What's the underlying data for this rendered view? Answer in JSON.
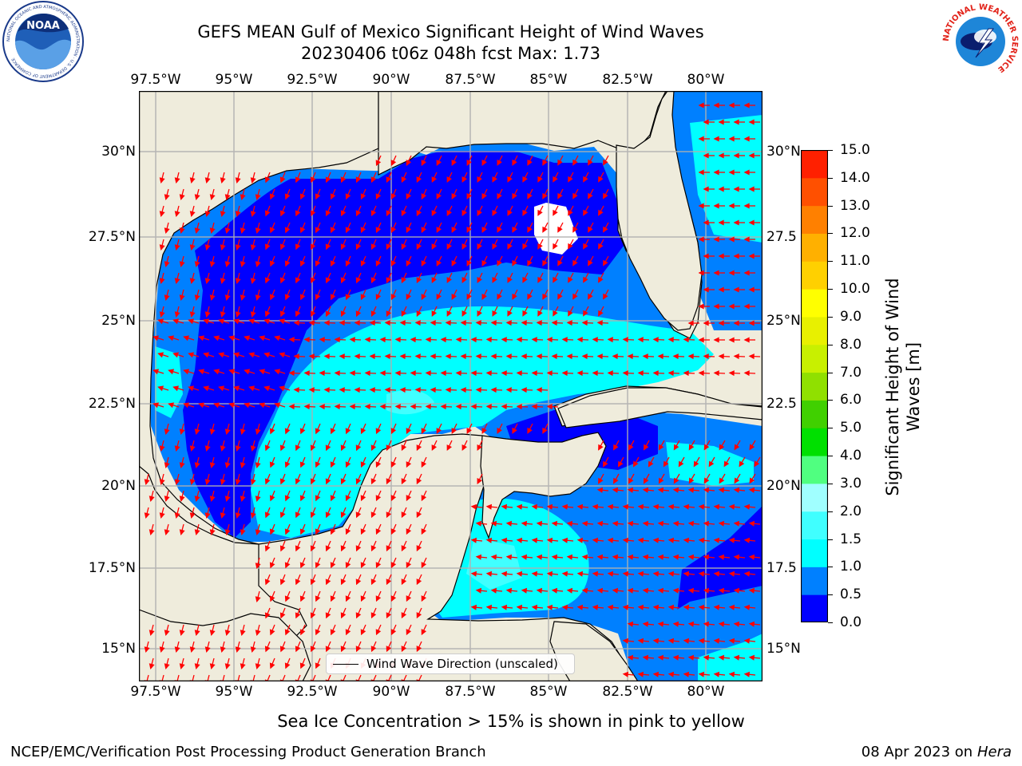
{
  "header": {
    "title_line1": "GEFS MEAN Gulf of Mexico Significant Height of Wind Waves",
    "title_line2": "20230406 t06z 048h fcst   Max: 1.73"
  },
  "logos": {
    "left_logo_text": "NOAA",
    "left_logo_ring": "NATIONAL OCEANIC AND ATMOSPHERIC ADMINISTRATION · U.S. DEPARTMENT OF COMMERCE",
    "right_logo_ring": "NATIONAL WEATHER SERVICE"
  },
  "map": {
    "lon_ticks": [
      "97.5°W",
      "95°W",
      "92.5°W",
      "90°W",
      "87.5°W",
      "85°W",
      "82.5°W",
      "80°W"
    ],
    "lat_ticks_left": [
      "30°N",
      "27.5°N",
      "25°N",
      "22.5°N",
      "20°N",
      "17.5°N",
      "15°N"
    ],
    "lat_ticks_right": [
      "30°N",
      "27.5",
      "25°N",
      "22.5",
      "20°N",
      "17.5",
      "15°N"
    ],
    "land_color": "#efecdc",
    "arrow_color": "#ff0000",
    "legend_label": "Wind Wave Direction (unscaled)"
  },
  "colorbar": {
    "label_line1": "Significant Height of Wind",
    "label_line2": "Waves [m]",
    "ticks": [
      "0.0",
      "0.5",
      "1.0",
      "1.5",
      "2.0",
      "3.0",
      "4.0",
      "5.0",
      "6.0",
      "7.0",
      "8.0",
      "9.0",
      "10.0",
      "11.0",
      "12.0",
      "13.0",
      "14.0",
      "15.0"
    ],
    "colors": [
      "#0000ff",
      "#0080ff",
      "#00ffff",
      "#40ffff",
      "#a0ffff",
      "#50ff80",
      "#00e000",
      "#40d000",
      "#90e000",
      "#c8f000",
      "#e8f000",
      "#ffff00",
      "#ffd000",
      "#ffb000",
      "#ff8000",
      "#ff5000",
      "#ff2000"
    ]
  },
  "notes": {
    "sea_ice": "Sea Ice Concentration > 15% is shown in pink to yellow"
  },
  "footer": {
    "left": "NCEP/EMC/Verification Post Processing Product Generation Branch",
    "date": "08 Apr 2023 on ",
    "host": "Hera"
  }
}
